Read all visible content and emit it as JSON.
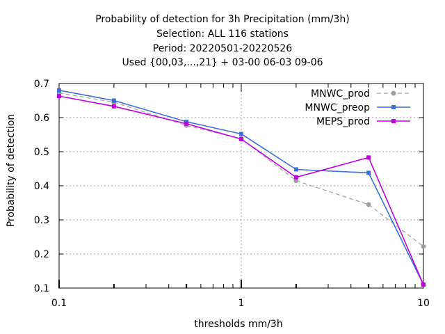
{
  "chart_data": {
    "type": "line",
    "title_lines": [
      "Probability of detection  for 3h Precipitation (mm/3h)",
      "Selection: ALL    116 stations",
      "Period: 20220501-20220526",
      "Used {00,03,...,21} + 03-00 06-03 09-06"
    ],
    "xlabel": "thresholds mm/3h",
    "ylabel": "Probability of detection",
    "x_scale": "log",
    "xlim": [
      0.1,
      10
    ],
    "ylim": [
      0.1,
      0.7
    ],
    "x_ticks": [
      0.1,
      1,
      10
    ],
    "x_tick_labels": [
      "0.1",
      "1",
      "10"
    ],
    "y_ticks": [
      0.1,
      0.2,
      0.3,
      0.4,
      0.5,
      0.6,
      0.7
    ],
    "y_tick_labels": [
      "0.1",
      "0.2",
      "0.3",
      "0.4",
      "0.5",
      "0.6",
      "0.7"
    ],
    "grid": true,
    "legend_position": "top-right",
    "x": [
      0.1,
      0.2,
      0.5,
      1,
      2,
      5,
      10
    ],
    "series": [
      {
        "name": "MNWC_prod",
        "values": [
          0.672,
          0.645,
          0.577,
          0.538,
          0.415,
          0.345,
          0.222
        ],
        "color": "#a0a0a0",
        "dashed": true
      },
      {
        "name": "MNWC_preop",
        "values": [
          0.68,
          0.65,
          0.588,
          0.552,
          0.448,
          0.438,
          0.11
        ],
        "color": "#3a6fd8",
        "dashed": false
      },
      {
        "name": "MEPS_prod",
        "values": [
          0.663,
          0.633,
          0.582,
          0.537,
          0.425,
          0.483,
          0.11
        ],
        "color": "#c000e0",
        "dashed": false
      }
    ]
  }
}
